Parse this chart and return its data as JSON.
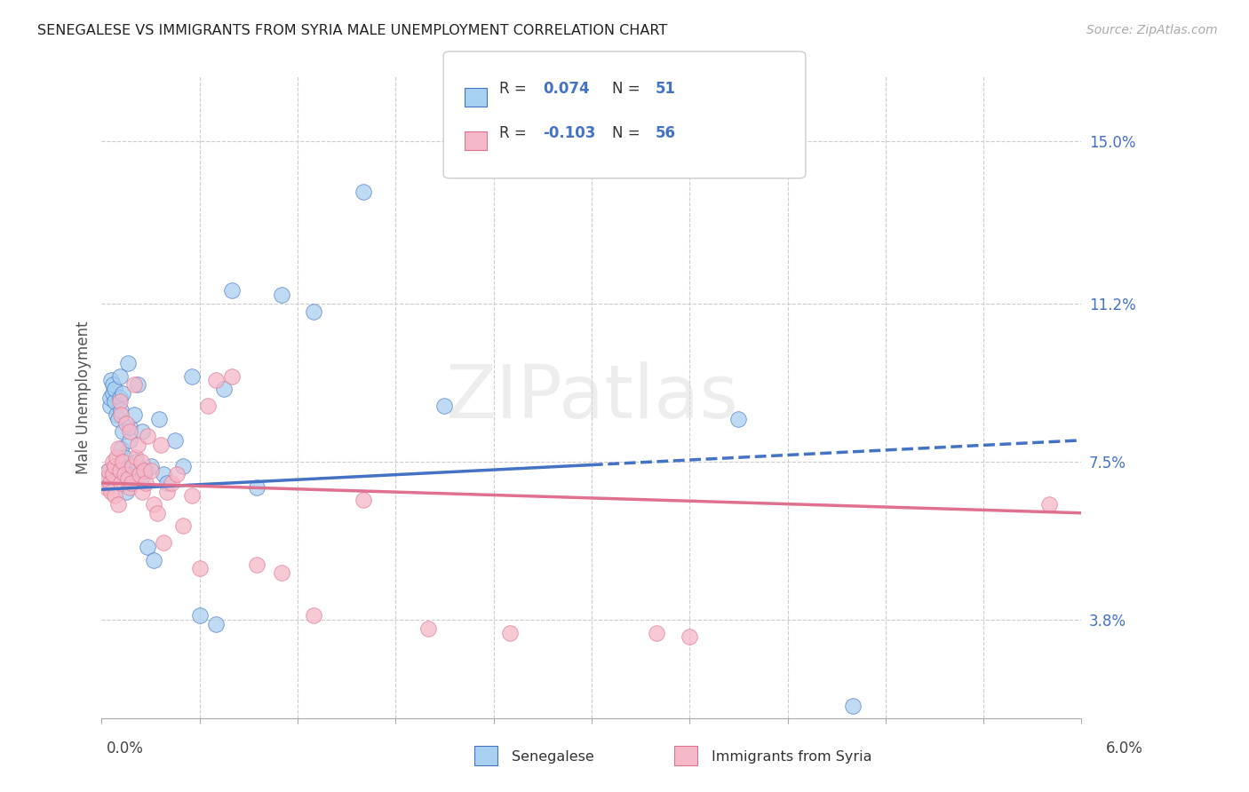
{
  "title": "SENEGALESE VS IMMIGRANTS FROM SYRIA MALE UNEMPLOYMENT CORRELATION CHART",
  "source": "Source: ZipAtlas.com",
  "ylabel": "Male Unemployment",
  "y_ticks": [
    3.8,
    7.5,
    11.2,
    15.0
  ],
  "x_range": [
    0.0,
    6.0
  ],
  "y_range": [
    1.5,
    16.5
  ],
  "blue_color": "#a8d0f0",
  "pink_color": "#f5b8c8",
  "line_blue": "#4472c4",
  "line_pink": "#e07090",
  "text_blue": "#4472c4",
  "watermark": "ZIPatlas",
  "blue_line_y0": 6.85,
  "blue_line_y6": 8.0,
  "pink_line_y0": 7.0,
  "pink_line_y6": 6.3,
  "blue_solid_end": 3.0,
  "blue_scatter_x": [
    0.02,
    0.04,
    0.05,
    0.05,
    0.06,
    0.07,
    0.07,
    0.08,
    0.08,
    0.09,
    0.1,
    0.1,
    0.11,
    0.11,
    0.12,
    0.12,
    0.13,
    0.13,
    0.14,
    0.15,
    0.16,
    0.17,
    0.17,
    0.18,
    0.19,
    0.2,
    0.21,
    0.22,
    0.24,
    0.25,
    0.27,
    0.28,
    0.3,
    0.32,
    0.35,
    0.38,
    0.4,
    0.45,
    0.5,
    0.55,
    0.6,
    0.7,
    0.75,
    0.8,
    0.95,
    1.1,
    1.3,
    1.6,
    2.1,
    3.9,
    4.6
  ],
  "blue_scatter_y": [
    7.1,
    7.3,
    8.8,
    9.0,
    9.4,
    9.1,
    9.3,
    8.9,
    9.2,
    8.6,
    7.2,
    8.5,
    9.0,
    9.5,
    8.7,
    7.8,
    8.2,
    9.1,
    7.6,
    6.8,
    9.8,
    8.0,
    8.3,
    7.4,
    7.2,
    8.6,
    7.5,
    9.3,
    7.1,
    8.2,
    7.3,
    5.5,
    7.4,
    5.2,
    8.5,
    7.2,
    7.0,
    8.0,
    7.4,
    9.5,
    3.9,
    3.7,
    9.2,
    11.5,
    6.9,
    11.4,
    11.0,
    13.8,
    8.8,
    8.5,
    1.8
  ],
  "pink_scatter_x": [
    0.02,
    0.03,
    0.04,
    0.05,
    0.06,
    0.07,
    0.07,
    0.08,
    0.08,
    0.09,
    0.1,
    0.1,
    0.11,
    0.11,
    0.12,
    0.12,
    0.13,
    0.14,
    0.15,
    0.16,
    0.17,
    0.17,
    0.18,
    0.19,
    0.2,
    0.21,
    0.22,
    0.23,
    0.24,
    0.25,
    0.26,
    0.27,
    0.28,
    0.3,
    0.32,
    0.34,
    0.36,
    0.38,
    0.4,
    0.43,
    0.46,
    0.5,
    0.55,
    0.6,
    0.65,
    0.7,
    0.8,
    0.95,
    1.1,
    1.3,
    1.6,
    2.0,
    2.5,
    3.4,
    3.6,
    5.8
  ],
  "pink_scatter_y": [
    7.1,
    6.9,
    7.3,
    7.0,
    6.8,
    7.2,
    7.5,
    6.7,
    7.4,
    7.6,
    6.5,
    7.8,
    8.9,
    7.3,
    7.0,
    8.6,
    7.5,
    7.2,
    8.4,
    7.1,
    6.9,
    8.2,
    7.0,
    7.4,
    9.3,
    7.6,
    7.9,
    7.2,
    7.5,
    6.8,
    7.3,
    7.0,
    8.1,
    7.3,
    6.5,
    6.3,
    7.9,
    5.6,
    6.8,
    7.0,
    7.2,
    6.0,
    6.7,
    5.0,
    8.8,
    9.4,
    9.5,
    5.1,
    4.9,
    3.9,
    6.6,
    3.6,
    3.5,
    3.5,
    3.4,
    6.5
  ]
}
